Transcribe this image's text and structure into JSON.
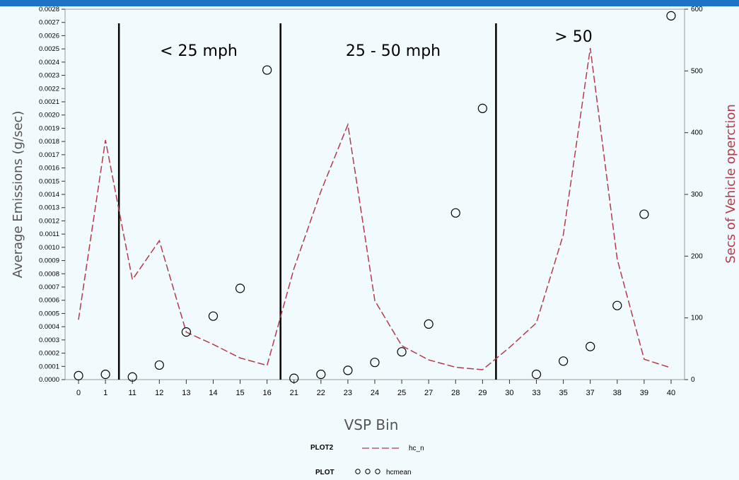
{
  "banner_text": "",
  "chart_data": {
    "type": "line+scatter",
    "categories": [
      "0",
      "1",
      "11",
      "12",
      "13",
      "14",
      "15",
      "16",
      "21",
      "22",
      "23",
      "24",
      "25",
      "27",
      "28",
      "29",
      "30",
      "33",
      "35",
      "37",
      "38",
      "39",
      "40"
    ],
    "xlabel": "VSP Bin",
    "ylabel_left": "Average Emissions (g/sec)",
    "ylabel_right": "Secs of Vehicle operction",
    "ylim_left": [
      0,
      0.0028
    ],
    "ylim_right": [
      0,
      600
    ],
    "left_ticks": [
      "0.0000",
      "0.0001",
      "0.0002",
      "0.0003",
      "0.0004",
      "0.0005",
      "0.0006",
      "0.0007",
      "0.0008",
      "0.0009",
      "0.0010",
      "0.0011",
      "0.0012",
      "0.0013",
      "0.0014",
      "0.0015",
      "0.0016",
      "0.0017",
      "0.0018",
      "0.0019",
      "0.0020",
      "0.0021",
      "0.0022",
      "0.0023",
      "0.0024",
      "0.0025",
      "0.0026",
      "0.0027",
      "0.0028"
    ],
    "right_ticks": [
      "0",
      "100",
      "200",
      "300",
      "400",
      "500",
      "600"
    ],
    "series": [
      {
        "name": "hc_n",
        "axis": "right",
        "style": "dashed-line",
        "color": "#b5394a",
        "values": [
          97,
          388,
          162,
          225,
          77,
          57,
          35,
          23,
          180,
          305,
          413,
          128,
          55,
          32,
          20,
          16,
          52,
          92,
          235,
          537,
          195,
          33,
          19
        ]
      },
      {
        "name": "hcmean",
        "axis": "left",
        "style": "open-circle",
        "color": "#000000",
        "values": [
          3e-05,
          4e-05,
          2e-05,
          0.00011,
          0.00036,
          0.00048,
          0.00069,
          0.00234,
          1e-05,
          4e-05,
          7e-05,
          0.00013,
          0.00021,
          0.00042,
          0.00126,
          0.00205,
          null,
          4e-05,
          0.00014,
          0.00025,
          0.00056,
          0.00125,
          0.00275
        ]
      }
    ],
    "region_dividers_after": [
      "1",
      "16",
      "29"
    ],
    "annotations": [
      "< 25 mph",
      "25 - 50 mph",
      "> 50"
    ],
    "legend": [
      {
        "label": "PLOT2",
        "symbol": "dashed-line",
        "name": "hc_n"
      },
      {
        "label": "PLOT",
        "symbol": "circles",
        "name": "hcmean"
      }
    ],
    "legend_position": "bottom-center",
    "grid": false
  },
  "colors": {
    "background": "#f1fbfd",
    "banner": "#1e73c4",
    "line": "#b5394a",
    "right_label": "#b5394a",
    "axis_label": "#555555"
  }
}
